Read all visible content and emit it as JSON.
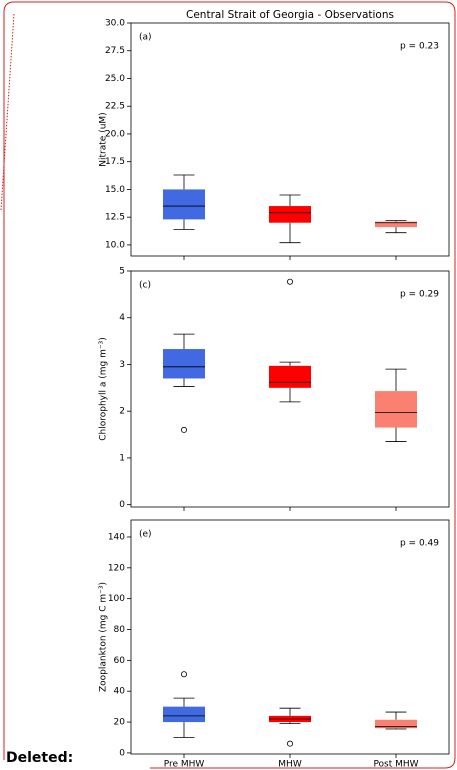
{
  "chart_data": [
    {
      "type": "box",
      "title": "Central Strait of Georgia - Observations",
      "panel_label": "(a)",
      "annotation": "p = 0.23",
      "ylabel": "Nitrate (uM)",
      "categories": [
        null,
        null,
        null
      ],
      "ylim": [
        9.0,
        30.0
      ],
      "yticks": [
        {
          "value": 10,
          "label": "10.0"
        },
        {
          "value": 12.5,
          "label": "12.5"
        },
        {
          "value": 15,
          "label": "15.0"
        },
        {
          "value": 17.5,
          "label": "17.5"
        },
        {
          "value": 20,
          "label": "20.0"
        },
        {
          "value": 22.5,
          "label": "22.5"
        },
        {
          "value": 25,
          "label": "25.0"
        },
        {
          "value": 27.5,
          "label": "27.5"
        },
        {
          "value": 30,
          "label": "30.0"
        }
      ],
      "boxes": [
        {
          "color": "#4169e1",
          "whislo": 11.4,
          "q1": 12.3,
          "med": 13.5,
          "q3": 15.0,
          "whishi": 16.3,
          "fliers": []
        },
        {
          "color": "#ff0000",
          "whislo": 10.2,
          "q1": 12.0,
          "med": 12.9,
          "q3": 13.5,
          "whishi": 14.5,
          "fliers": []
        },
        {
          "color": "#fa8072",
          "whislo": 11.1,
          "q1": 11.6,
          "med": 12.0,
          "q3": 12.1,
          "whishi": 12.2,
          "fliers": []
        }
      ]
    },
    {
      "type": "box",
      "panel_label": "(c)",
      "annotation": "p = 0.29",
      "ylabel": "Chlorophyll a (mg m⁻³)",
      "categories": [
        null,
        null,
        null
      ],
      "ylim": [
        -0.05,
        5.0
      ],
      "yticks": [
        0,
        1,
        2,
        3,
        4,
        5
      ],
      "boxes": [
        {
          "color": "#4169e1",
          "whislo": 2.53,
          "q1": 2.7,
          "med": 2.95,
          "q3": 3.33,
          "whishi": 3.65,
          "fliers": [
            1.6
          ]
        },
        {
          "color": "#ff0000",
          "whislo": 2.2,
          "q1": 2.5,
          "med": 2.62,
          "q3": 2.97,
          "whishi": 3.05,
          "fliers": [
            4.77
          ]
        },
        {
          "color": "#fa8072",
          "whislo": 1.35,
          "q1": 1.65,
          "med": 1.97,
          "q3": 2.43,
          "whishi": 2.9,
          "fliers": []
        }
      ]
    },
    {
      "type": "box",
      "panel_label": "(e)",
      "annotation": "p = 0.49",
      "ylabel": "Zooplankton (mg C m⁻³)",
      "categories": [
        "Pre MHW",
        "MHW",
        "Post MHW"
      ],
      "ylim": [
        -0.7,
        151
      ],
      "yticks": [
        0,
        20,
        40,
        60,
        80,
        100,
        120,
        140
      ],
      "boxes": [
        {
          "color": "#4169e1",
          "whislo": 10,
          "q1": 20,
          "med": 24,
          "q3": 30,
          "whishi": 35.5,
          "fliers": [
            51
          ]
        },
        {
          "color": "#ff0000",
          "whislo": 19,
          "q1": 20,
          "med": 22,
          "q3": 24,
          "whishi": 29,
          "fliers": [
            6
          ]
        },
        {
          "color": "#fa8072",
          "whislo": 15.5,
          "q1": 16,
          "med": 17,
          "q3": 21.5,
          "whishi": 26.5,
          "fliers": []
        }
      ]
    }
  ],
  "comment_label": "Deleted:"
}
